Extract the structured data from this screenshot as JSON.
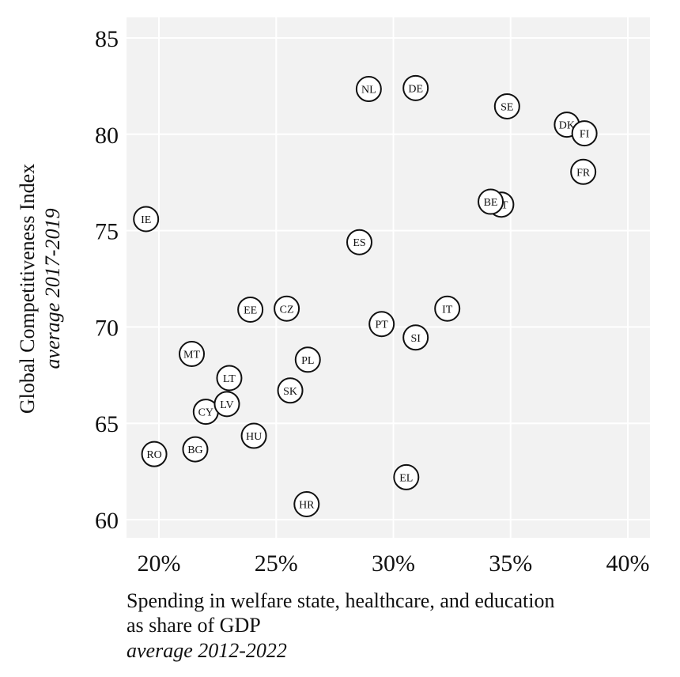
{
  "chart_data": {
    "type": "scatter",
    "xlabel": [
      "Spending in welfare state, healthcare, and education",
      "as share of GDP",
      "average 2012-2022"
    ],
    "ylabel": [
      "Global Competitiveness Index",
      "average 2017-2019"
    ],
    "xlim": [
      18.7,
      40.9
    ],
    "ylim": [
      59,
      86
    ],
    "x_ticks": [
      20,
      25,
      30,
      35,
      40
    ],
    "x_tick_labels": [
      "20%",
      "25%",
      "30%",
      "35%",
      "40%"
    ],
    "y_ticks": [
      60,
      65,
      70,
      75,
      80,
      85
    ],
    "y_tick_labels": [
      "60",
      "65",
      "70",
      "75",
      "80",
      "85"
    ],
    "grid": true,
    "background": "#f2f2f2",
    "points": [
      {
        "label": "IE",
        "x": 19.45,
        "y": 75.6
      },
      {
        "label": "RO",
        "x": 19.8,
        "y": 63.4
      },
      {
        "label": "BG",
        "x": 21.55,
        "y": 63.65
      },
      {
        "label": "CY",
        "x": 22.0,
        "y": 65.6
      },
      {
        "label": "LV",
        "x": 22.9,
        "y": 66.0
      },
      {
        "label": "HU",
        "x": 24.05,
        "y": 64.35
      },
      {
        "label": "LT",
        "x": 23.0,
        "y": 67.35
      },
      {
        "label": "MT",
        "x": 21.4,
        "y": 68.6
      },
      {
        "label": "EE",
        "x": 23.9,
        "y": 70.9
      },
      {
        "label": "CZ",
        "x": 25.45,
        "y": 70.95
      },
      {
        "label": "SK",
        "x": 25.6,
        "y": 66.7
      },
      {
        "label": "PL",
        "x": 26.35,
        "y": 68.3
      },
      {
        "label": "HR",
        "x": 26.3,
        "y": 60.8
      },
      {
        "label": "PT",
        "x": 29.5,
        "y": 70.15
      },
      {
        "label": "SI",
        "x": 30.95,
        "y": 69.45
      },
      {
        "label": "EL",
        "x": 30.55,
        "y": 62.2
      },
      {
        "label": "IT",
        "x": 32.3,
        "y": 70.95
      },
      {
        "label": "ES",
        "x": 28.55,
        "y": 74.4
      },
      {
        "label": "NL",
        "x": 28.95,
        "y": 82.35
      },
      {
        "label": "DE",
        "x": 30.95,
        "y": 82.4
      },
      {
        "label": "SE",
        "x": 34.85,
        "y": 81.45
      },
      {
        "label": "AT",
        "x": 34.6,
        "y": 76.35
      },
      {
        "label": "BE",
        "x": 34.15,
        "y": 76.5
      },
      {
        "label": "DK",
        "x": 37.4,
        "y": 80.5
      },
      {
        "label": "FI",
        "x": 38.15,
        "y": 80.05
      },
      {
        "label": "FR",
        "x": 38.1,
        "y": 78.05
      }
    ]
  }
}
